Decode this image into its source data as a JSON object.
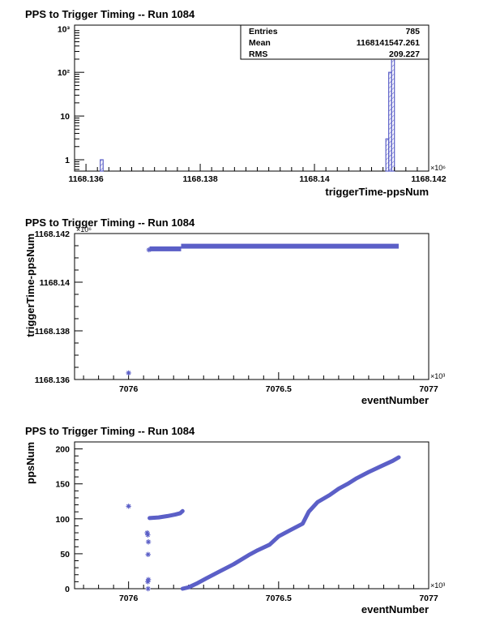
{
  "chart_data": [
    {
      "type": "histogram",
      "title": "PPS to Trigger Timing -- Run 1084",
      "xlabel": "triggerTime-ppsNum",
      "ylabel": "",
      "x_multiplier_label": "×10⁶",
      "xlim": [
        1168.1358,
        1168.142
      ],
      "x_tick_labels": [
        "1168.136",
        "1168.138",
        "1168.14",
        "1168.142"
      ],
      "x_tick_values": [
        1168.136,
        1168.138,
        1168.14,
        1168.142
      ],
      "log_y": true,
      "ylim": [
        0.55,
        1200
      ],
      "y_tick_labels": [
        "1",
        "10",
        "10²",
        "10³"
      ],
      "y_tick_values": [
        1,
        10,
        100,
        1000
      ],
      "bins": [
        {
          "x0": 1168.13625,
          "x1": 1168.1363,
          "count": 1
        },
        {
          "x0": 1168.14125,
          "x1": 1168.1413,
          "count": 3
        },
        {
          "x0": 1168.1413,
          "x1": 1168.14135,
          "count": 100
        },
        {
          "x0": 1168.14135,
          "x1": 1168.1414,
          "count": 680
        }
      ],
      "stats": [
        {
          "label": "Entries",
          "value": "785"
        },
        {
          "label": "Mean",
          "value": "1168141547.261"
        },
        {
          "label": "RMS",
          "value": "209.227"
        }
      ],
      "color": "#5b5fc7",
      "grid": false
    },
    {
      "type": "scatter",
      "title": "PPS to Trigger Timing -- Run 1084",
      "xlabel": "eventNumber",
      "ylabel": "triggerTime-ppsNum",
      "x_multiplier_label": "×10³",
      "y_multiplier_label": "×10⁶",
      "xlim": [
        7075.82,
        7077.0
      ],
      "ylim": [
        1168.136,
        1168.142
      ],
      "x_tick_labels": [
        "7076",
        "7076.5",
        "7077"
      ],
      "x_tick_values": [
        7076,
        7076.5,
        7077
      ],
      "y_tick_labels": [
        "1168.136",
        "1168.138",
        "1168.14",
        "1168.142"
      ],
      "y_tick_values": [
        1168.136,
        1168.138,
        1168.14,
        1168.142
      ],
      "points": [
        [
          7076.0,
          1168.13627
        ],
        [
          7076.068,
          1168.14133
        ]
      ],
      "segments": [
        {
          "x0": 7076.07,
          "x1": 7076.175,
          "y": 1168.14137
        },
        {
          "x0": 7076.175,
          "x1": 7076.9,
          "y": 1168.14148
        }
      ],
      "color": "#5b5fc7",
      "grid": false
    },
    {
      "type": "scatter",
      "title": "PPS to Trigger Timing -- Run 1084",
      "xlabel": "eventNumber",
      "ylabel": "ppsNum",
      "x_multiplier_label": "×10³",
      "xlim": [
        7075.82,
        7077.0
      ],
      "ylim": [
        0,
        210
      ],
      "x_tick_labels": [
        "7076",
        "7076.5",
        "7077"
      ],
      "x_tick_values": [
        7076,
        7076.5,
        7077
      ],
      "y_tick_labels": [
        "0",
        "50",
        "100",
        "150",
        "200"
      ],
      "y_tick_values": [
        0,
        50,
        100,
        150,
        200
      ],
      "points": [
        [
          7076.0,
          118
        ],
        [
          7076.062,
          80
        ],
        [
          7076.064,
          77
        ],
        [
          7076.066,
          67
        ],
        [
          7076.065,
          49
        ],
        [
          7076.066,
          13
        ],
        [
          7076.064,
          10
        ],
        [
          7076.065,
          0
        ]
      ],
      "curves": [
        [
          [
            7076.07,
            101
          ],
          [
            7076.1,
            102
          ],
          [
            7076.13,
            104
          ],
          [
            7076.155,
            106
          ],
          [
            7076.172,
            108
          ],
          [
            7076.18,
            111
          ]
        ],
        [
          [
            7076.18,
            0
          ],
          [
            7076.2,
            2
          ],
          [
            7076.23,
            8
          ],
          [
            7076.26,
            15
          ],
          [
            7076.3,
            24
          ],
          [
            7076.35,
            35
          ],
          [
            7076.4,
            48
          ],
          [
            7076.43,
            55
          ],
          [
            7076.47,
            63
          ],
          [
            7076.5,
            75
          ],
          [
            7076.54,
            84
          ],
          [
            7076.58,
            93
          ],
          [
            7076.6,
            110
          ],
          [
            7076.63,
            124
          ],
          [
            7076.67,
            134
          ],
          [
            7076.7,
            143
          ],
          [
            7076.73,
            150
          ],
          [
            7076.76,
            158
          ],
          [
            7076.8,
            167
          ],
          [
            7076.84,
            175
          ],
          [
            7076.88,
            183
          ],
          [
            7076.9,
            188
          ]
        ]
      ],
      "color": "#5b5fc7",
      "grid": false
    }
  ]
}
